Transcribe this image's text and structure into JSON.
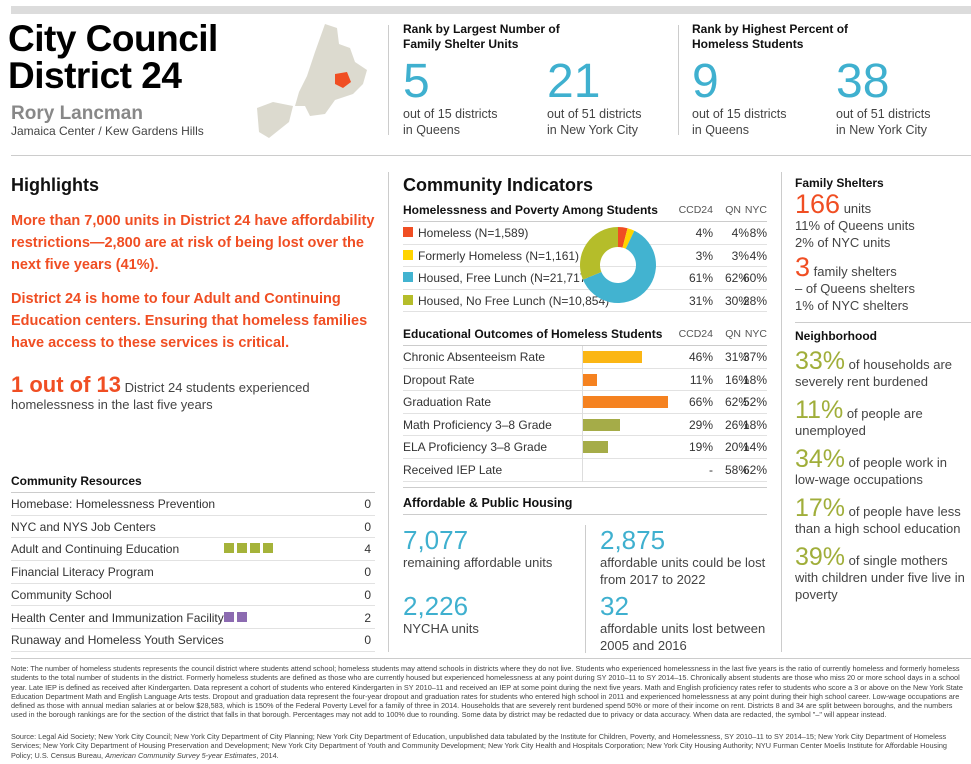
{
  "header": {
    "title_line1": "City Council",
    "title_line2": "District 24",
    "member": "Rory Lancman",
    "area": "Jamaica Center / Kew Gardens Hills"
  },
  "ranks": [
    {
      "heading": "Rank by Largest Number of Family Shelter Units",
      "items": [
        {
          "value": "5",
          "sub1": "out of 15 districts",
          "sub2": "in Queens"
        },
        {
          "value": "21",
          "sub1": "out of 51 districts",
          "sub2": "in New York City"
        }
      ]
    },
    {
      "heading": "Rank by Highest Percent of Homeless Students",
      "items": [
        {
          "value": "9",
          "sub1": "out of 15 districts",
          "sub2": "in Queens"
        },
        {
          "value": "38",
          "sub1": "out of 51 districts",
          "sub2": "in New York City"
        }
      ]
    }
  ],
  "highlights": {
    "title": "Highlights",
    "p1": "More than 7,000 units in District 24 have affordability restrictions—2,800 are at risk of being lost over the next five years (41%).",
    "p2": "District 24 is home to four Adult and Continuing Education centers. Ensuring that homeless families have access to these services is critical.",
    "stat_big": "1 out of 13",
    "stat_text": "District 24 students experienced homelessness in the last five years"
  },
  "resources": {
    "title": "Community Resources",
    "items": [
      {
        "label": "Homebase: Homelessness Prevention",
        "count": "0",
        "n": 0,
        "color": ""
      },
      {
        "label": "NYC and NYS Job Centers",
        "count": "0",
        "n": 0,
        "color": ""
      },
      {
        "label": "Adult and Continuing Education",
        "count": "4",
        "n": 4,
        "color": "#a5b33a"
      },
      {
        "label": "Financial Literacy Program",
        "count": "0",
        "n": 0,
        "color": ""
      },
      {
        "label": "Community School",
        "count": "0",
        "n": 0,
        "color": ""
      },
      {
        "label": "Health Center and Immunization Facility",
        "count": "2",
        "n": 2,
        "color": "#8c6bb1"
      },
      {
        "label": "Runaway and Homeless Youth Services",
        "count": "0",
        "n": 0,
        "color": ""
      }
    ]
  },
  "indicators": {
    "title": "Community Indicators",
    "poverty": {
      "title": "Homelessness and Poverty Among Students",
      "cols": [
        "CCD24",
        "QN",
        "NYC"
      ],
      "rows": [
        {
          "label": "Homeless (N=1,589)",
          "color": "#f04e23",
          "value": 4,
          "vals": [
            "4%",
            "4%",
            "8%"
          ]
        },
        {
          "label": "Formerly Homeless (N=1,161)",
          "color": "#ffd400",
          "value": 3,
          "vals": [
            "3%",
            "3%",
            "4%"
          ]
        },
        {
          "label": "Housed, Free Lunch (N=21,717)",
          "color": "#42b3d0",
          "value": 61,
          "vals": [
            "61%",
            "62%",
            "60%"
          ]
        },
        {
          "label": "Housed, No Free Lunch (N=10,854)",
          "color": "#b5bd2a",
          "value": 31,
          "vals": [
            "31%",
            "30%",
            "28%"
          ]
        }
      ]
    },
    "education": {
      "title": "Educational Outcomes of Homeless Students",
      "cols": [
        "CCD24",
        "QN",
        "NYC"
      ],
      "rows": [
        {
          "label": "Chronic Absenteeism Rate",
          "value": 46,
          "color": "#fbb614",
          "vals": [
            "46%",
            "31%",
            "37%"
          ]
        },
        {
          "label": "Dropout Rate",
          "value": 11,
          "color": "#f58220",
          "vals": [
            "11%",
            "16%",
            "18%"
          ]
        },
        {
          "label": "Graduation Rate",
          "value": 66,
          "color": "#f58220",
          "vals": [
            "66%",
            "62%",
            "52%"
          ]
        },
        {
          "label": "Math Proficiency 3–8 Grade",
          "value": 29,
          "color": "#a5ac48",
          "vals": [
            "29%",
            "26%",
            "18%"
          ]
        },
        {
          "label": "ELA Proficiency 3–8 Grade",
          "value": 19,
          "color": "#a5ac48",
          "vals": [
            "19%",
            "20%",
            "14%"
          ]
        },
        {
          "label": "Received IEP Late",
          "value": 0,
          "color": "#a5ac48",
          "vals": [
            "-",
            "58%",
            "62%"
          ]
        }
      ]
    },
    "housing": {
      "title": "Affordable & Public Housing",
      "items": [
        {
          "value": "7,077",
          "text": "remaining affordable units"
        },
        {
          "value": "2,875",
          "text": "affordable units could be lost from 2017 to 2022"
        },
        {
          "value": "2,226",
          "text": "NYCHA units"
        },
        {
          "value": "32",
          "text": "affordable units lost between 2005 and 2016"
        }
      ]
    }
  },
  "shelters": {
    "title": "Family Shelters",
    "units_value": "166",
    "units_label": "units",
    "units_l1": "11% of Queens units",
    "units_l2": "2% of NYC units",
    "fam_value": "3",
    "fam_label": "family shelters",
    "fam_l1": "– of Queens shelters",
    "fam_l2": "1% of NYC shelters"
  },
  "neighborhood": {
    "title": "Neighborhood",
    "items": [
      {
        "value": "33%",
        "text1": "of households",
        "text2": "are severely rent burdened"
      },
      {
        "value": "11%",
        "text1": "of people are",
        "text2": "unemployed"
      },
      {
        "value": "34%",
        "text1": "of people work",
        "text2": "in low-wage occupations"
      },
      {
        "value": "17%",
        "text1": "of people have",
        "text2": "less than a high school education"
      },
      {
        "value": "39%",
        "text1": "of single",
        "text2": "mothers with children under five live in poverty"
      }
    ]
  },
  "footer": {
    "note": "Note: The number of homeless students represents the council district where students attend school; homeless students may attend schools in districts where they do not live. Students who experienced homelessness in the last five years is the ratio of currently homeless and formerly homeless students to the total number of students in the district. Formerly homeless students are defined as those who are currently housed but experienced homelessness at any point during SY 2010–11 to SY 2014–15. Chronically absent students are those who miss 20 or more school days in a school year. Late IEP is defined as received after Kindergarten. Data represent a cohort of students who entered Kindergarten in SY 2010–11 and received an IEP at some point during the next five years. Math and English proficiency rates refer to students who score a 3 or above on the New York State Education Department Math and English Language Arts tests. Dropout and graduation data represent the four-year dropout and graduation rates for students who entered high school in 2011 and experienced homelessness at any point during their high school career. Low-wage occupations are defined as those with annual median salaries at or below $28,583, which is 150% of the Federal Poverty Level for a family of three in 2014. Households that are severely rent burdened spend 50% or more of their income on rent. Districts 8 and 34 are split between boroughs, and the numbers used in the borough rankings are for the section of the district that falls in that borough. Percentages may not add to 100% due to rounding. Some data by district may be redacted due to privacy or data accuracy. When data are redacted, the symbol \"–\" will appear instead.",
    "source": "Source: Legal Aid Society; New York City Council; New York City Department of City Planning; New York City Department of Education, unpublished data tabulated by the Institute for Children, Poverty, and Homelessness, SY 2010–11 to SY 2014–15; New York City Department of Homeless Services; New York City Department of Housing Preservation and Development; New York City Department of Youth and Community Development; New York City Health and Hospitals Corporation; New York City Housing Authority; NYU Furman Center Moelis Institute for Affordable Housing Policy; U.S. Census Bureau,",
    "source_italic": "American Community Survey 5-year Estimates",
    "source_end": ", 2014."
  }
}
